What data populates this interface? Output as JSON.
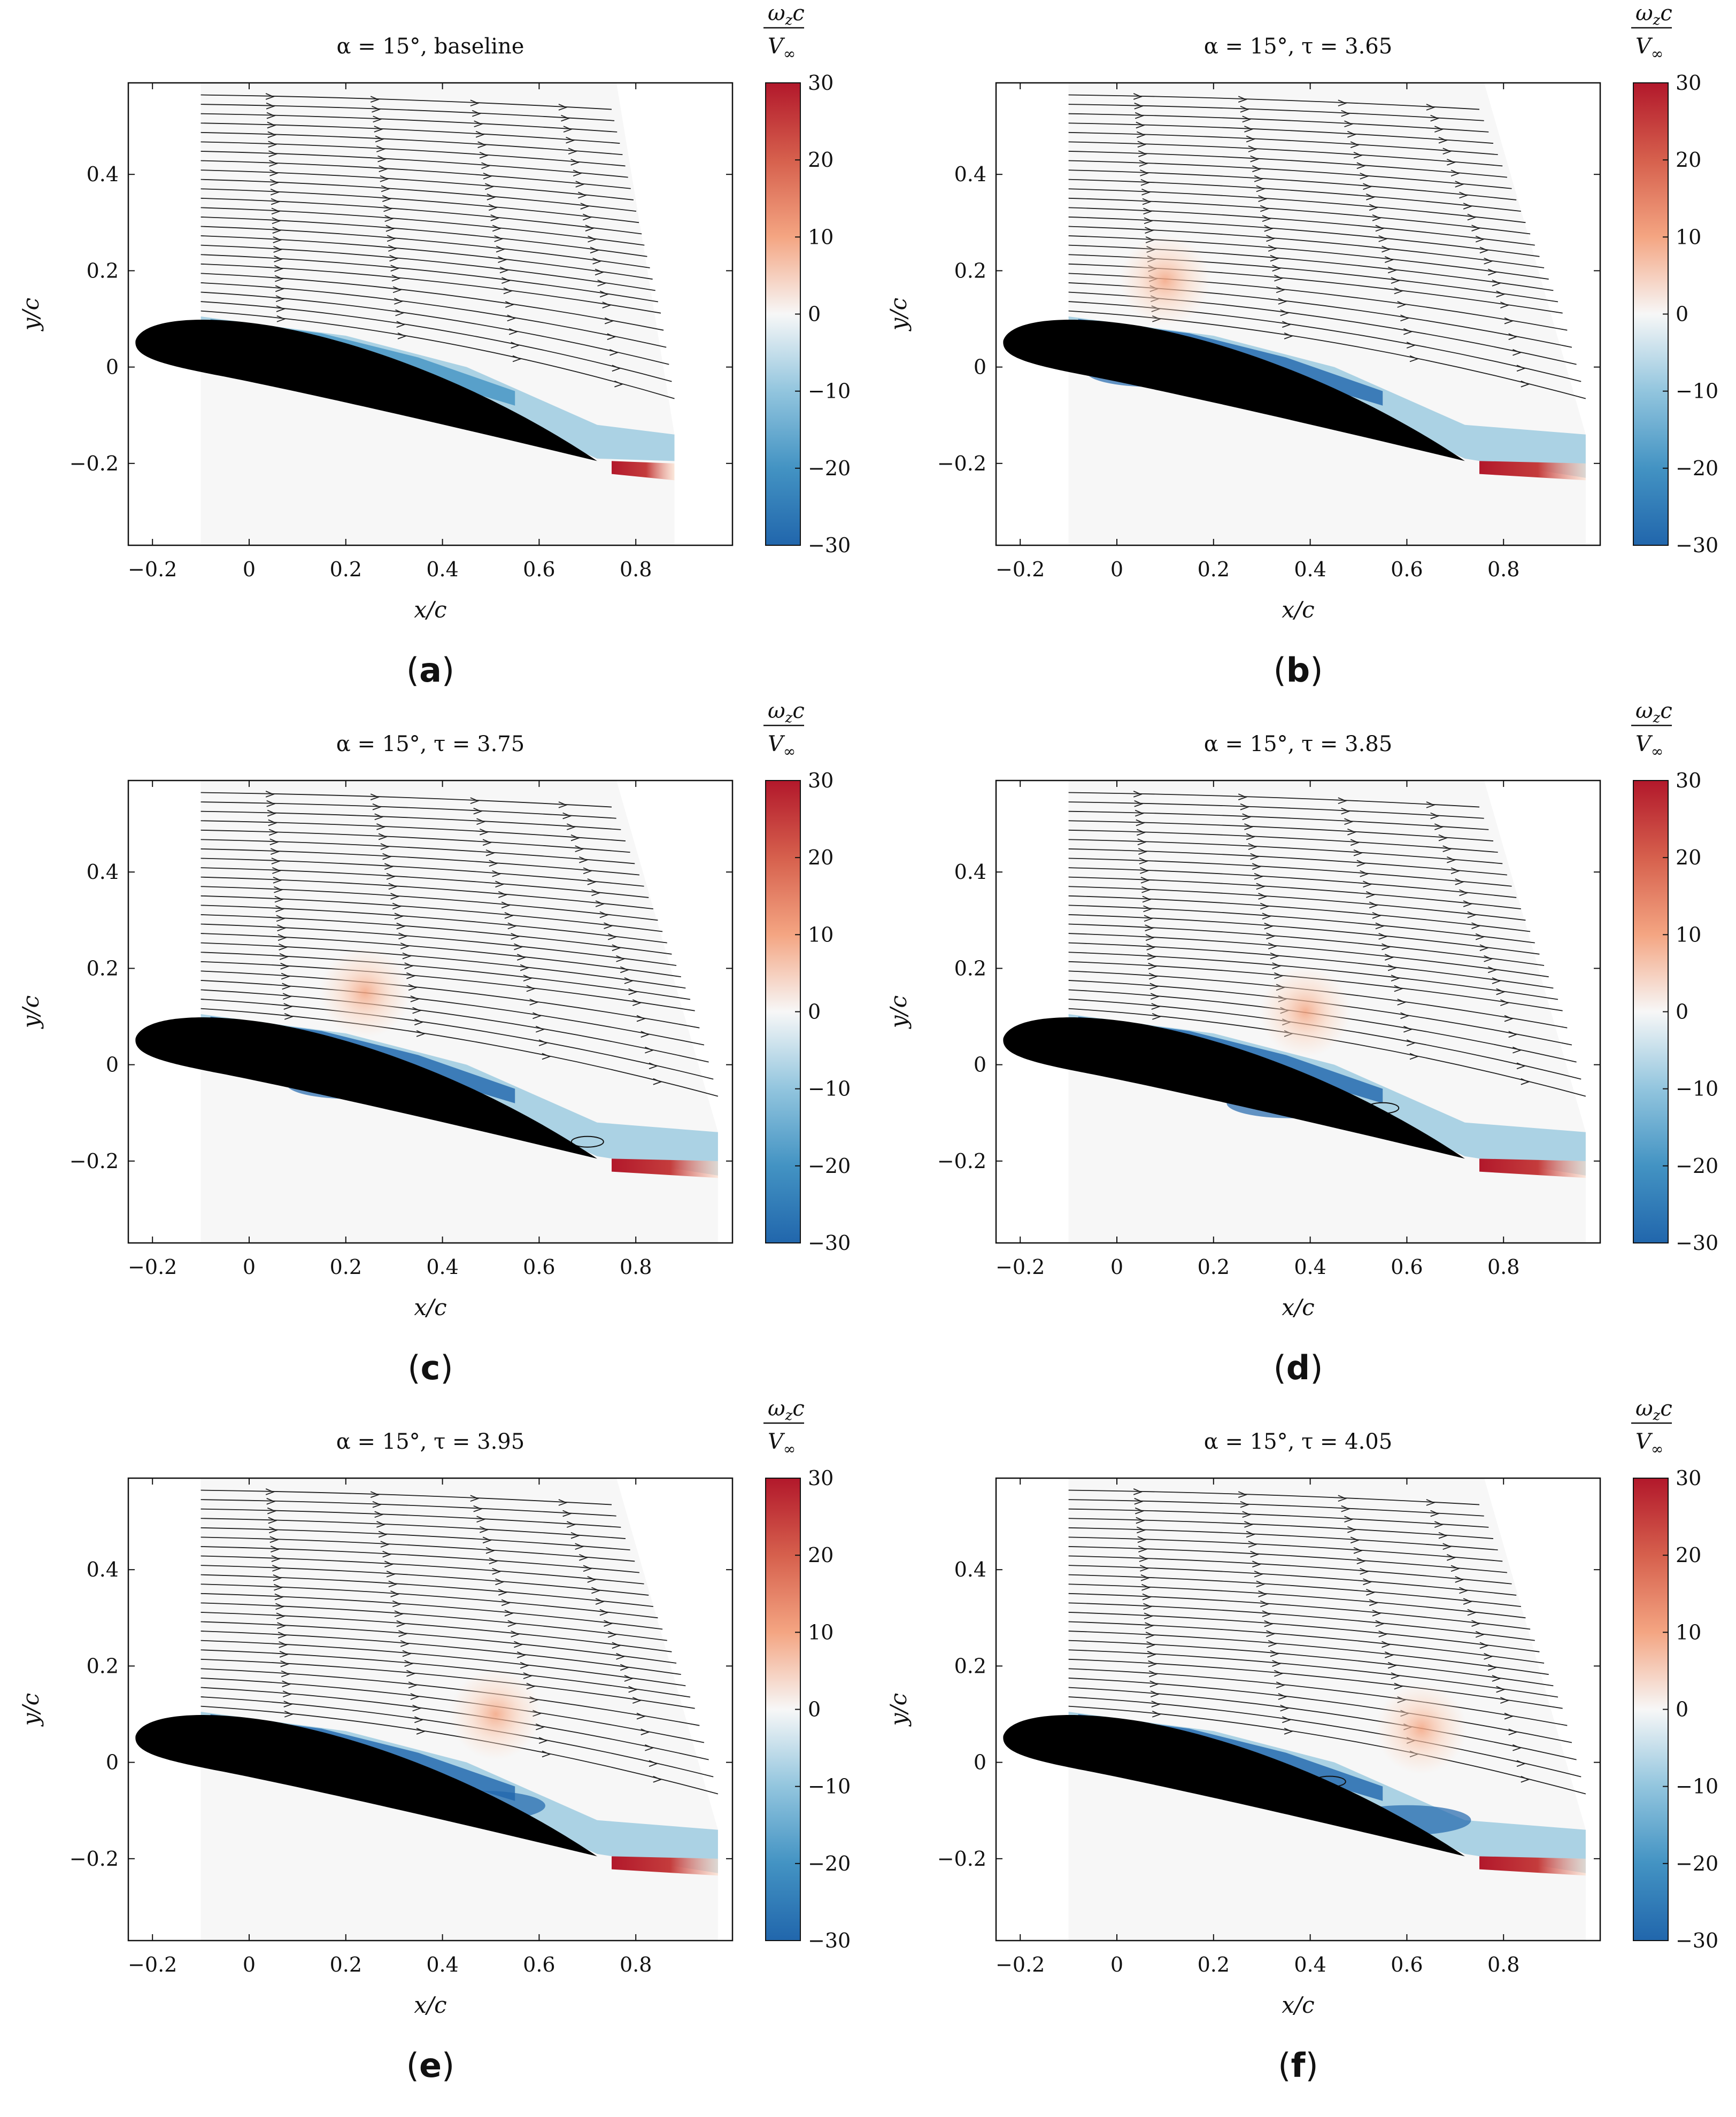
{
  "figure": {
    "colorbar": {
      "label_num": "ω",
      "label_sub": "z",
      "label_c": "c",
      "label_den": "V",
      "label_den_sub": "∞",
      "ticks": [
        "30",
        "20",
        "10",
        "0",
        "−10",
        "−20",
        "−30"
      ],
      "colors": [
        "#2166ac",
        "#4393c3",
        "#92c5de",
        "#f7f7f7",
        "#f4a582",
        "#d6604d",
        "#b2182b"
      ]
    },
    "axes": {
      "xlabel": "x/c",
      "ylabel": "y/c",
      "xticks": [
        "−0.2",
        "0",
        "0.2",
        "0.4",
        "0.6",
        "0.8"
      ],
      "yticks": [
        "0.4",
        "0.2",
        "0",
        "−0.2"
      ]
    }
  },
  "chart_data": [
    {
      "type": "heatmap",
      "title": "α = 15°, baseline",
      "subfigure": "a",
      "xlabel": "x/c",
      "ylabel": "y/c",
      "xlim": [
        -0.25,
        1.0
      ],
      "ylim": [
        -0.37,
        0.59
      ],
      "colorbar_range": [
        -30,
        30
      ],
      "field_xmax": 0.88,
      "vortex": null,
      "separation_bubble": null
    },
    {
      "type": "heatmap",
      "title": "α = 15°, τ = 3.65",
      "subfigure": "b",
      "xlabel": "x/c",
      "ylabel": "y/c",
      "xlim": [
        -0.25,
        1.0
      ],
      "ylim": [
        -0.37,
        0.59
      ],
      "colorbar_range": [
        -30,
        30
      ],
      "field_xmax": 0.97,
      "vortex": {
        "x": 0.1,
        "y": 0.18
      },
      "separation_bubble": null
    },
    {
      "type": "heatmap",
      "title": "α = 15°, τ = 3.75",
      "subfigure": "c",
      "xlabel": "x/c",
      "ylabel": "y/c",
      "xlim": [
        -0.25,
        1.0
      ],
      "ylim": [
        -0.37,
        0.59
      ],
      "colorbar_range": [
        -30,
        30
      ],
      "field_xmax": 0.97,
      "vortex": {
        "x": 0.24,
        "y": 0.15
      },
      "separation_bubble": {
        "x": 0.7,
        "y": -0.16
      }
    },
    {
      "type": "heatmap",
      "title": "α = 15°, τ = 3.85",
      "subfigure": "d",
      "xlabel": "x/c",
      "ylabel": "y/c",
      "xlim": [
        -0.25,
        1.0
      ],
      "ylim": [
        -0.37,
        0.59
      ],
      "colorbar_range": [
        -30,
        30
      ],
      "field_xmax": 0.97,
      "vortex": {
        "x": 0.39,
        "y": 0.11
      },
      "separation_bubble": {
        "x": 0.55,
        "y": -0.09
      }
    },
    {
      "type": "heatmap",
      "title": "α = 15°, τ = 3.95",
      "subfigure": "e",
      "xlabel": "x/c",
      "ylabel": "y/c",
      "xlim": [
        -0.25,
        1.0
      ],
      "ylim": [
        -0.37,
        0.59
      ],
      "colorbar_range": [
        -30,
        30
      ],
      "field_xmax": 0.97,
      "vortex": {
        "x": 0.51,
        "y": 0.1
      },
      "separation_bubble": null
    },
    {
      "type": "heatmap",
      "title": "α = 15°, τ = 4.05",
      "subfigure": "f",
      "xlabel": "x/c",
      "ylabel": "y/c",
      "xlim": [
        -0.25,
        1.0
      ],
      "ylim": [
        -0.37,
        0.59
      ],
      "colorbar_range": [
        -30,
        30
      ],
      "field_xmax": 0.97,
      "vortex": {
        "x": 0.63,
        "y": 0.07
      },
      "separation_bubble": {
        "x": 0.44,
        "y": -0.04
      }
    }
  ]
}
